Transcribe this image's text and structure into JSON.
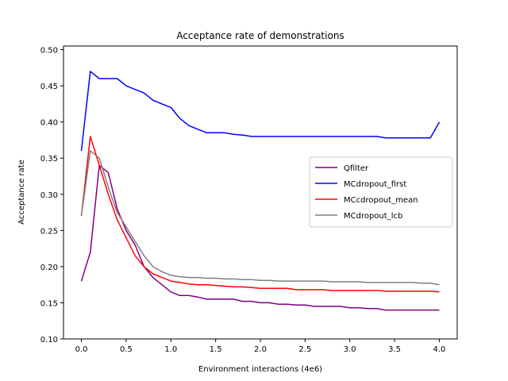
{
  "chart_data": {
    "type": "line",
    "title": "Acceptance rate of demonstrations",
    "xlabel": "Environment interactions (4e6)",
    "ylabel": "Acceptance rate",
    "xlim": [
      -0.2,
      4.2
    ],
    "ylim": [
      0.1,
      0.505
    ],
    "xticks": [
      0.0,
      0.5,
      1.0,
      1.5,
      2.0,
      2.5,
      3.0,
      3.5,
      4.0
    ],
    "yticks": [
      0.1,
      0.15,
      0.2,
      0.25,
      0.3,
      0.35,
      0.4,
      0.45,
      0.5
    ],
    "grid": false,
    "legend_position": "center-right",
    "x": [
      0.0,
      0.1,
      0.2,
      0.3,
      0.4,
      0.5,
      0.6,
      0.7,
      0.8,
      0.9,
      1.0,
      1.1,
      1.2,
      1.3,
      1.4,
      1.5,
      1.6,
      1.7,
      1.8,
      1.9,
      2.0,
      2.1,
      2.2,
      2.3,
      2.4,
      2.5,
      2.6,
      2.7,
      2.8,
      2.9,
      3.0,
      3.1,
      3.2,
      3.3,
      3.4,
      3.5,
      3.6,
      3.7,
      3.8,
      3.9,
      4.0
    ],
    "series": [
      {
        "name": "Qfilter",
        "color": "#800080",
        "values": [
          0.18,
          0.22,
          0.34,
          0.33,
          0.28,
          0.25,
          0.23,
          0.2,
          0.185,
          0.175,
          0.165,
          0.16,
          0.16,
          0.158,
          0.155,
          0.155,
          0.155,
          0.155,
          0.152,
          0.152,
          0.15,
          0.15,
          0.148,
          0.148,
          0.147,
          0.147,
          0.145,
          0.145,
          0.145,
          0.145,
          0.143,
          0.143,
          0.142,
          0.142,
          0.14,
          0.14,
          0.14,
          0.14,
          0.14,
          0.14,
          0.14
        ]
      },
      {
        "name": "MCdropout_first",
        "color": "#0000ff",
        "values": [
          0.36,
          0.47,
          0.46,
          0.46,
          0.46,
          0.45,
          0.445,
          0.44,
          0.43,
          0.425,
          0.42,
          0.405,
          0.395,
          0.39,
          0.385,
          0.385,
          0.385,
          0.383,
          0.382,
          0.38,
          0.38,
          0.38,
          0.38,
          0.38,
          0.38,
          0.38,
          0.38,
          0.38,
          0.38,
          0.38,
          0.38,
          0.38,
          0.38,
          0.38,
          0.378,
          0.378,
          0.378,
          0.378,
          0.378,
          0.378,
          0.4
        ]
      },
      {
        "name": "MCcdropout_mean",
        "color": "#ff0000",
        "values": [
          0.27,
          0.38,
          0.34,
          0.3,
          0.265,
          0.24,
          0.215,
          0.2,
          0.19,
          0.185,
          0.18,
          0.178,
          0.176,
          0.175,
          0.175,
          0.174,
          0.173,
          0.172,
          0.172,
          0.171,
          0.17,
          0.17,
          0.17,
          0.17,
          0.168,
          0.168,
          0.168,
          0.168,
          0.167,
          0.167,
          0.167,
          0.167,
          0.167,
          0.167,
          0.166,
          0.166,
          0.166,
          0.166,
          0.166,
          0.166,
          0.165
        ]
      },
      {
        "name": "MCdropout_lcb",
        "color": "#808080",
        "values": [
          0.27,
          0.36,
          0.35,
          0.31,
          0.275,
          0.255,
          0.235,
          0.215,
          0.2,
          0.193,
          0.188,
          0.186,
          0.185,
          0.185,
          0.184,
          0.184,
          0.183,
          0.183,
          0.182,
          0.182,
          0.181,
          0.181,
          0.18,
          0.18,
          0.18,
          0.18,
          0.18,
          0.18,
          0.179,
          0.179,
          0.179,
          0.179,
          0.178,
          0.178,
          0.178,
          0.178,
          0.178,
          0.178,
          0.177,
          0.177,
          0.175
        ]
      }
    ]
  }
}
